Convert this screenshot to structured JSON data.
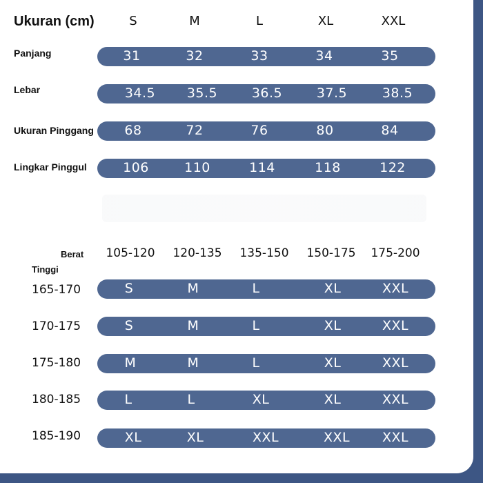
{
  "size_table": {
    "title": "Ukuran (cm)",
    "sizes": [
      "S",
      "M",
      "L",
      "XL",
      "XXL"
    ],
    "rows": [
      {
        "label": "Panjang",
        "values": [
          "31",
          "32",
          "33",
          "34",
          "35"
        ]
      },
      {
        "label": "Lebar",
        "values": [
          "34.5",
          "35.5",
          "36.5",
          "37.5",
          "38.5"
        ]
      },
      {
        "label": "Ukuran Pinggang",
        "values": [
          "68",
          "72",
          "76",
          "80",
          "84"
        ]
      },
      {
        "label": "Lingkar Pinggul",
        "values": [
          "106",
          "110",
          "114",
          "118",
          "122"
        ]
      }
    ]
  },
  "recommendation_table": {
    "weight_label": "Berat",
    "height_label": "Tinggi",
    "weights": [
      "105-120",
      "120-135",
      "135-150",
      "150-175",
      "175-200"
    ],
    "rows": [
      {
        "height": "165-170",
        "values": [
          "S",
          "M",
          "L",
          "XL",
          "XXL"
        ]
      },
      {
        "height": "170-175",
        "values": [
          "S",
          "M",
          "L",
          "XL",
          "XXL"
        ]
      },
      {
        "height": "175-180",
        "values": [
          "M",
          "M",
          "L",
          "XL",
          "XXL"
        ]
      },
      {
        "height": "180-185",
        "values": [
          "L",
          "L",
          "XL",
          "XL",
          "XXL"
        ]
      },
      {
        "height": "185-190",
        "values": [
          "XL",
          "XL",
          "XXL",
          "XXL",
          "XXL"
        ]
      }
    ]
  },
  "colors": {
    "bar": "#4f6791",
    "frame": "#3d5684",
    "text": "#111111"
  }
}
